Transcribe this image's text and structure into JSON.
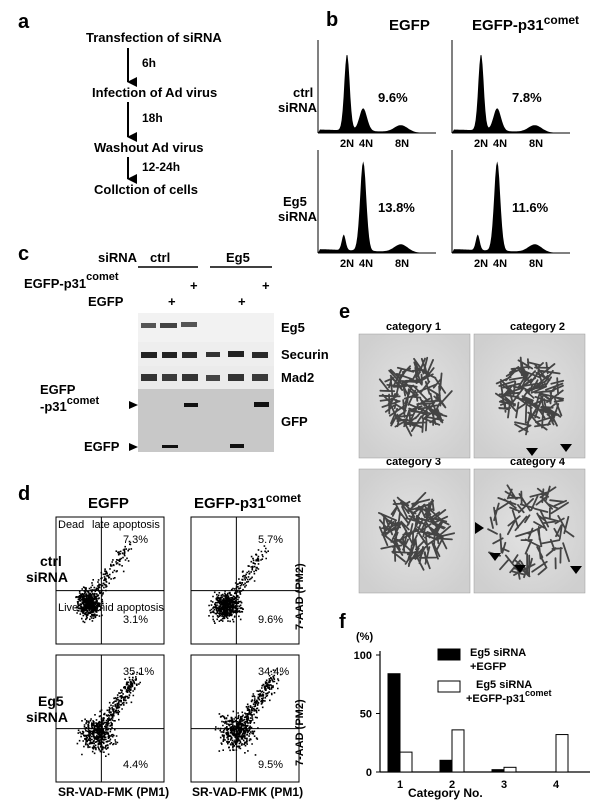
{
  "panel_labels": [
    "a",
    "b",
    "c",
    "d",
    "e",
    "f"
  ],
  "panel_a": {
    "steps": [
      "Transfection of siRNA",
      "Infection of Ad virus",
      "Washout Ad virus",
      "Collction of cells"
    ],
    "intervals": [
      "6h",
      "18h",
      "12-24h"
    ]
  },
  "panel_b": {
    "columns": [
      "EGFP",
      "EGFP-p31"
    ],
    "col_super": "comet",
    "rows": [
      [
        "ctrl",
        "siRNA"
      ],
      [
        "Eg5",
        "siRNA"
      ]
    ],
    "ticks": [
      "2N",
      "4N",
      "8N"
    ],
    "percents": [
      [
        "9.6%",
        "7.8%"
      ],
      [
        "13.8%",
        "11.6%"
      ]
    ]
  },
  "panel_c": {
    "header_siRNA": "siRNA",
    "groups": [
      "ctrl",
      "Eg5"
    ],
    "row_p31": "EGFP-p31",
    "row_p31_super": "comet",
    "row_egfp": "EGFP",
    "plus": "+",
    "blots": [
      "Eg5",
      "Securin",
      "Mad2",
      "GFP"
    ],
    "band_p31_line1": "EGFP",
    "band_p31_line2": "-p31",
    "band_p31_super": "comet",
    "band_egfp": "EGFP"
  },
  "panel_d": {
    "columns": [
      "EGFP",
      "EGFP-p31"
    ],
    "col_super": "comet",
    "rows": [
      [
        "ctrl",
        "siRNA"
      ],
      [
        "Eg5",
        "siRNA"
      ]
    ],
    "quadrant_labels": [
      "Dead",
      "late apoptosis",
      "Live",
      "mid apoptosis"
    ],
    "percents": [
      [
        [
          "7.3%",
          "3.1%"
        ],
        [
          "5.7%",
          "9.6%"
        ]
      ],
      [
        [
          "35.1%",
          "4.4%"
        ],
        [
          "34.4%",
          "9.5%"
        ]
      ]
    ],
    "xlabel": "SR-VAD-FMK (PM1)",
    "ylabel": "7-AAD (PM2)"
  },
  "panel_e": {
    "categories": [
      "category 1",
      "category 2",
      "category 3",
      "category 4"
    ]
  },
  "chart_data": {
    "type": "bar",
    "categories": [
      "1",
      "2",
      "3",
      "4"
    ],
    "series": [
      {
        "name": "Eg5 siRNA +EGFP",
        "values": [
          84,
          10,
          2,
          0
        ]
      },
      {
        "name": "Eg5 siRNA +EGFP-p31comet",
        "values": [
          17,
          36,
          4,
          32
        ]
      }
    ],
    "legend": [
      {
        "line1": "Eg5 siRNA",
        "line2": "+EGFP",
        "super": ""
      },
      {
        "line1": "Eg5 siRNA",
        "line2": "+EGFP-p31",
        "super": "comet"
      }
    ],
    "ylabel": "(%)",
    "xlabel": "Category No.",
    "yticks": [
      "0",
      "50",
      "100"
    ],
    "ylim": [
      0,
      100
    ],
    "colors": [
      "#000000",
      "#ffffff"
    ]
  }
}
